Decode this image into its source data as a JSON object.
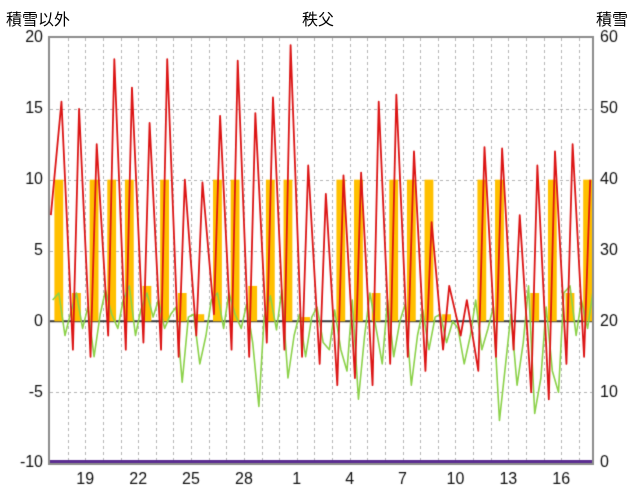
{
  "header": {
    "left_axis_title": "積雪以外",
    "title": "秩父",
    "right_axis_title": "積雪"
  },
  "chart_data": {
    "type": "line",
    "title": "秩父",
    "left_axis": {
      "label": "積雪以外",
      "min": -10,
      "max": 20,
      "ticks": [
        20,
        15,
        10,
        5,
        0,
        -5,
        -10
      ]
    },
    "right_axis": {
      "label": "積雪",
      "min": 0,
      "max": 60,
      "ticks": [
        60,
        50,
        40,
        30,
        20,
        10,
        0
      ]
    },
    "x_axis": {
      "min": 17,
      "max": 47.75,
      "grid_interval": 1,
      "tick_positions": [
        19,
        22,
        25,
        28,
        31,
        34,
        37,
        40,
        43,
        46
      ],
      "tick_labels": [
        "19",
        "22",
        "25",
        "28",
        "1",
        "4",
        "7",
        "10",
        "13",
        "16"
      ]
    },
    "styles": {
      "background": "#ffffff",
      "grid_color": "#b6b6b6",
      "zero_line_color": "#3a3a3a",
      "border_color": "#8c8c8c",
      "text_color": "#111111"
    },
    "series": [
      {
        "id": "orange-bars",
        "type": "bar",
        "axis": "left",
        "color": "#FFC000",
        "day_start": 17,
        "bar_width": 0.5,
        "values": [
          10,
          2,
          10,
          10,
          10,
          2.5,
          10,
          2,
          0.5,
          10,
          10,
          2.5,
          10,
          10,
          0.3,
          0,
          10,
          10,
          2,
          10,
          10,
          10,
          0.5,
          0,
          10,
          10,
          0,
          2,
          10,
          2,
          10
        ]
      },
      {
        "id": "green-line",
        "type": "daily-line",
        "axis": "left",
        "color": "#8CD24A",
        "line_width": 1.6,
        "day_start": 17,
        "offsets": [
          0.15,
          0.5,
          0.85
        ],
        "per_day": [
          [
            1.5,
            2,
            -1
          ],
          [
            0.5,
            2,
            -0.5
          ],
          [
            1,
            -2.5,
            0.5
          ],
          [
            2.2,
            0.5,
            -0.5
          ],
          [
            1.5,
            2.5,
            -1
          ],
          [
            0.8,
            2,
            0.3
          ],
          [
            1.5,
            -0.5,
            0.5
          ],
          [
            1,
            -4.3,
            0.3
          ],
          [
            0.5,
            -3,
            -1
          ],
          [
            1.5,
            2,
            -0.5
          ],
          [
            2,
            0.5,
            -0.5
          ],
          [
            1.2,
            -1.5,
            -6
          ],
          [
            0.3,
            1.8,
            -0.6
          ],
          [
            2.2,
            -4,
            -1
          ],
          [
            0.5,
            -2.5,
            0.3
          ],
          [
            1,
            -1.5,
            -2
          ],
          [
            0.8,
            -2,
            -3.5
          ],
          [
            1.5,
            -5.5,
            -1
          ],
          [
            2,
            -0.5,
            -3
          ],
          [
            1.5,
            -2.5,
            0
          ],
          [
            1.2,
            -4.5,
            -1
          ],
          [
            0.8,
            -2,
            0.3
          ],
          [
            0.5,
            -1.5,
            0
          ],
          [
            -0.5,
            -3,
            -1
          ],
          [
            1.5,
            -2,
            -0.5
          ],
          [
            1,
            -7,
            -3
          ],
          [
            0.5,
            -4.5,
            -1.5
          ],
          [
            2.5,
            -6.5,
            -4
          ],
          [
            1,
            -3.5,
            -5
          ],
          [
            2,
            2.5,
            -1
          ],
          [
            1.5,
            -0.5,
            2.5
          ]
        ]
      },
      {
        "id": "red-line",
        "type": "line",
        "axis": "left",
        "color": "#DC1414",
        "line_width": 1.8,
        "points": [
          [
            17.05,
            7.5
          ],
          [
            17.65,
            15.5
          ],
          [
            18.3,
            -2
          ],
          [
            18.65,
            15
          ],
          [
            19.3,
            -2.5
          ],
          [
            19.65,
            12.5
          ],
          [
            20.3,
            -1
          ],
          [
            20.65,
            18.5
          ],
          [
            21.3,
            -2
          ],
          [
            21.65,
            16.5
          ],
          [
            22.3,
            -1.5
          ],
          [
            22.65,
            14
          ],
          [
            23.3,
            -2
          ],
          [
            23.65,
            18.5
          ],
          [
            24.3,
            -2.5
          ],
          [
            24.65,
            10
          ],
          [
            25.3,
            -1
          ],
          [
            25.65,
            9.8
          ],
          [
            26.3,
            0.5
          ],
          [
            26.65,
            14.5
          ],
          [
            27.3,
            -2
          ],
          [
            27.65,
            18.4
          ],
          [
            28.3,
            -2.5
          ],
          [
            28.65,
            14.7
          ],
          [
            29.3,
            -1.5
          ],
          [
            29.65,
            15.8
          ],
          [
            30.3,
            -2
          ],
          [
            30.65,
            19.5
          ],
          [
            31.3,
            -2.5
          ],
          [
            31.65,
            11
          ],
          [
            32.3,
            -3
          ],
          [
            32.65,
            9
          ],
          [
            33.3,
            -4.5
          ],
          [
            33.65,
            10.3
          ],
          [
            34.3,
            -4
          ],
          [
            34.65,
            10.5
          ],
          [
            35.3,
            -4.5
          ],
          [
            35.65,
            15.5
          ],
          [
            36.3,
            -3
          ],
          [
            36.65,
            16
          ],
          [
            37.3,
            -2.5
          ],
          [
            37.65,
            12
          ],
          [
            38.3,
            -3.5
          ],
          [
            38.65,
            7
          ],
          [
            39.3,
            -2
          ],
          [
            39.65,
            2.5
          ],
          [
            40.3,
            -1
          ],
          [
            40.65,
            1.5
          ],
          [
            41.3,
            -3.5
          ],
          [
            41.65,
            12.3
          ],
          [
            42.3,
            -2.5
          ],
          [
            42.65,
            12.2
          ],
          [
            43.3,
            -2
          ],
          [
            43.65,
            7.5
          ],
          [
            44.3,
            -5
          ],
          [
            44.65,
            11
          ],
          [
            45.3,
            -5.5
          ],
          [
            45.65,
            12
          ],
          [
            46.3,
            -3
          ],
          [
            46.65,
            12.5
          ],
          [
            47.3,
            -2.5
          ],
          [
            47.65,
            10
          ]
        ]
      },
      {
        "id": "purple-line",
        "type": "line",
        "axis": "right",
        "color": "#5B2D91",
        "line_width": 3,
        "points": [
          [
            17,
            0
          ],
          [
            47.75,
            0
          ]
        ]
      }
    ]
  }
}
